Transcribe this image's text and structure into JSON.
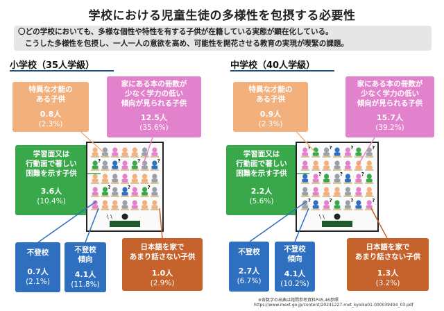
{
  "title": "学校における児童生徒の多様性を包摂する必要性",
  "intro": {
    "line1": "〇どの学校においても、多様な個性や特性を有する子供が在籍している実態が顕在化している。",
    "line2": "こうした多様性を包摂し、一人一人の意欲を高め、可能性を開花させる教育の実現が喫緊の課題。"
  },
  "elementary": {
    "heading": "小学校（35人学級）",
    "gifted": {
      "label_1": "特異な才能の",
      "label_2": "ある子供",
      "count": "0.8人",
      "pct": "(2.3%)"
    },
    "few_books": {
      "label_1": "家にある本の冊数が",
      "label_2": "少なく学力の低い",
      "label_3": "傾向が見られる子供",
      "count": "12.5人",
      "pct": "(35.6%)"
    },
    "difficulty": {
      "label_1": "学習面又は",
      "label_2": "行動面で著しい",
      "label_3": "困難を示す子供",
      "count": "3.6人",
      "pct": "(10.4%)"
    },
    "absent": {
      "label_1": "不登校",
      "count": "0.7人",
      "pct": "(2.1%)"
    },
    "absent_tendency": {
      "label_1": "不登校",
      "label_2": "傾向",
      "count": "4.1人",
      "pct": "(11.8%)"
    },
    "japanese": {
      "label_1": "日本語を家で",
      "label_2": "あまり話さない子供",
      "count": "1.0人",
      "pct": "(2.9%)"
    }
  },
  "junior_high": {
    "heading": "中学校（40人学級）",
    "gifted": {
      "label_1": "特異な才能の",
      "label_2": "ある子供",
      "count": "0.9人",
      "pct": "(2.3%)"
    },
    "few_books": {
      "label_1": "家にある本の冊数が",
      "label_2": "少なく学力の低い",
      "label_3": "傾向が見られる子供",
      "count": "15.7人",
      "pct": "(39.2%)"
    },
    "difficulty": {
      "label_1": "学習面又は",
      "label_2": "行動面で著しい",
      "label_3": "困難を示す子供",
      "count": "2.2人",
      "pct": "(5.6%)"
    },
    "absent": {
      "label_1": "不登校",
      "count": "2.7人",
      "pct": "(6.7%)"
    },
    "absent_tendency": {
      "label_1": "不登校",
      "label_2": "傾向",
      "count": "4.1人",
      "pct": "(10.2%)"
    },
    "japanese": {
      "label_1": "日本語を家で",
      "label_2": "あまり話さない子供",
      "count": "1.3人",
      "pct": "(3.2%)"
    }
  },
  "footnote": {
    "line1": "※各数字の出典は諮問参考資料P45,46参照",
    "line2": "https://www.mext.go.jp/content/20241227-mxt_kyoiku01-000039494_03.pdf"
  },
  "colors": {
    "gifted": "#f2b07d",
    "few_books": "#e382cc",
    "difficulty": "#38a84b",
    "absent": "#2e6fc0",
    "japanese": "#c6622b",
    "heading_line": "#1f4e8c",
    "intro_bg": "#e6e6e6"
  }
}
